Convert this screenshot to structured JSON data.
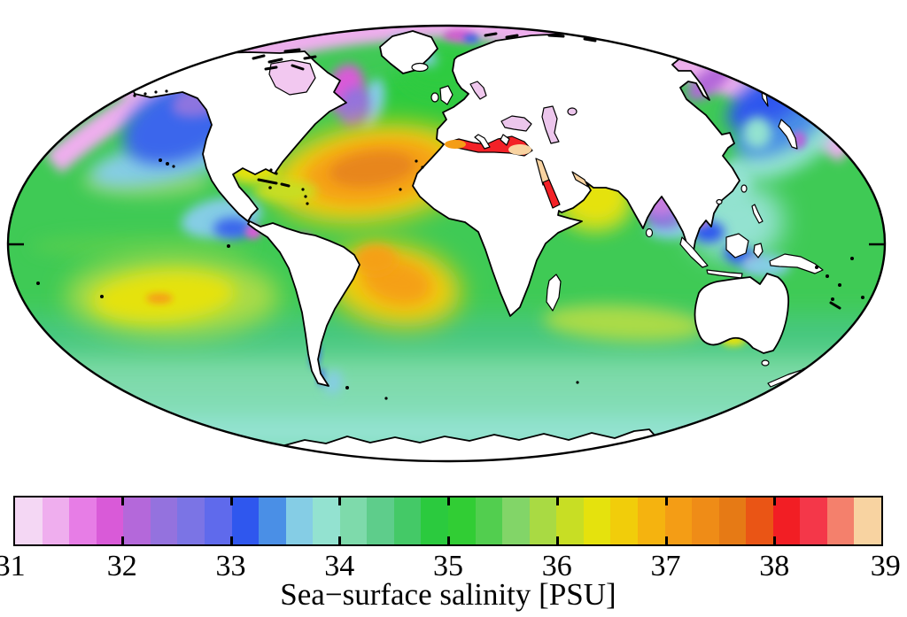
{
  "figure": {
    "type": "world-map",
    "projection": "mollweide-ellipse",
    "caption": "Sea−surface salinity [PSU]"
  },
  "colorbar": {
    "label": "Sea−surface salinity [PSU]",
    "min": 31,
    "max": 39,
    "units": "PSU",
    "tick_labels": [
      "31",
      "32",
      "33",
      "34",
      "35",
      "36",
      "37",
      "38",
      "39"
    ],
    "segments_per_unit": 4,
    "segment_colors": [
      "#f4d7f4",
      "#efaeee",
      "#e77de6",
      "#d95ad8",
      "#b468da",
      "#9472de",
      "#7b74e5",
      "#5f6aec",
      "#2f57ee",
      "#4a8fe6",
      "#85cde5",
      "#93e2d0",
      "#7edaab",
      "#5ecd8b",
      "#44c967",
      "#2bca3e",
      "#31cd34",
      "#52ce4f",
      "#82d568",
      "#a9da43",
      "#c8de24",
      "#e5e20d",
      "#f1cd0a",
      "#f5b30f",
      "#f49d15",
      "#ef8c17",
      "#e67a15",
      "#ea5515",
      "#f21e24",
      "#f43749",
      "#f4806c",
      "#f8d3a1"
    ],
    "border_color": "#000000"
  },
  "map": {
    "land_color": "#ffffff",
    "coast_color": "#000000",
    "outline_color": "#000000",
    "ocean_base": {
      "label": "Mid-latitude ocean",
      "color": "#3fca55",
      "psu": 34.8
    },
    "regions": {
      "arctic": {
        "label": "Arctic Ocean",
        "color": "#efaeee",
        "psu": 31.4
      },
      "arctic_spot_magenta": {
        "label": "Arctic low-salinity spot",
        "color": "#da5ad8",
        "psu": 31.8
      },
      "arctic_spot_blue": {
        "label": "Arctic blue patch",
        "color": "#3a66ec",
        "psu": 33.0
      },
      "hudson_bay": {
        "label": "Hudson Bay",
        "color": "#f2c8f0",
        "psu": 31.3
      },
      "baltic_sea": {
        "label": "Baltic Sea",
        "color": "#f0c8ee",
        "psu": 31.4
      },
      "black_sea": {
        "label": "Black Sea",
        "color": "#ecc6ec",
        "psu": 31.4
      },
      "caspian_sea": {
        "label": "Caspian Sea",
        "color": "#ecc6ec",
        "psu": 31.4
      },
      "aral_sea": {
        "label": "Aral Sea",
        "color": "#ecc6ec",
        "psu": 31.4
      },
      "np_subpolar_blue": {
        "label": "Subpolar North Pacific",
        "color": "#3a66ec",
        "psu": 32.9
      },
      "np_subpolar_purple": {
        "label": "Gulf of Alaska coastal",
        "color": "#8d74e0",
        "psu": 32.4
      },
      "np_subpolar_cyan": {
        "label": "North Pacific transition",
        "color": "#85cde5",
        "psu": 33.5
      },
      "np_light_green": {
        "label": "North Pacific subtropics",
        "color": "#82d568",
        "psu": 35.4
      },
      "labrador_magenta": {
        "label": "Labrador coastal",
        "color": "#da5ad8",
        "psu": 31.8
      },
      "labrador_purple": {
        "label": "Labrador Sea",
        "color": "#9472de",
        "psu": 32.3
      },
      "greenland_cyan": {
        "label": "East Greenland current",
        "color": "#85cde5",
        "psu": 33.5
      },
      "greenland_blue": {
        "label": "Greenland blue fringe",
        "color": "#3a66ec",
        "psu": 33.0
      },
      "norwegian_green": {
        "label": "NE Atlantic / Norwegian Sea",
        "color": "#2fcb3f",
        "psu": 35.0
      },
      "natl_gyre_yellow": {
        "label": "N Atlantic gyre outer",
        "color": "#f1cd0a",
        "psu": 36.5
      },
      "natl_gyre_orange": {
        "label": "N Atlantic gyre ring",
        "color": "#f5a018",
        "psu": 37.0
      },
      "natl_gyre_core": {
        "label": "N Atlantic salinity maximum",
        "color": "#e8861c",
        "psu": 37.4
      },
      "gulf_mexico_yellow": {
        "label": "Gulf of Mexico",
        "color": "#e5e20d",
        "psu": 36.2
      },
      "caribbean_yellow_green": {
        "label": "Caribbean Sea",
        "color": "#c8de24",
        "psu": 36.0
      },
      "epac_fresh_cyan": {
        "label": "E tropical Pacific fresh pool",
        "color": "#85cde5",
        "psu": 33.5
      },
      "epac_fresh_blue": {
        "label": "Panama Bight",
        "color": "#3a66ec",
        "psu": 33.0
      },
      "epac_fresh_magenta": {
        "label": "Gulf of Panama minimum",
        "color": "#da5ad8",
        "psu": 31.8
      },
      "amazon_plume": {
        "label": "Amazon/Orinoco plume",
        "color": "#da5ad8",
        "psu": 31.8
      },
      "satl_gyre_yellow": {
        "label": "S Atlantic gyre outer",
        "color": "#f1cd0a",
        "psu": 36.5
      },
      "satl_gyre_orange": {
        "label": "S Atlantic salinity maximum",
        "color": "#f5a018",
        "psu": 37.0
      },
      "spac_gyre_yellow": {
        "label": "S Pacific gyre",
        "color": "#e5e20d",
        "psu": 36.3
      },
      "spac_gyre_orange": {
        "label": "S Pacific maximum spot",
        "color": "#f5a018",
        "psu": 36.8
      },
      "spac_ring": {
        "label": "S Pacific gyre fringe",
        "color": "#abdb46",
        "psu": 35.8
      },
      "sind_band": {
        "label": "S Indian subtropical band",
        "color": "#abdb46",
        "psu": 35.8
      },
      "bight_yellow": {
        "label": "Great Australian Bight",
        "color": "#e5e20d",
        "psu": 36.1
      },
      "arabian_sea_yellow": {
        "label": "Arabian Sea",
        "color": "#e5e20d",
        "psu": 36.3
      },
      "arabian_sea_ring": {
        "label": "Arabian Sea fringe",
        "color": "#c8de24",
        "psu": 36.0
      },
      "bengal_violet": {
        "label": "Bay of Bengal core",
        "color": "#c77be0",
        "psu": 32.0
      },
      "bengal_purple": {
        "label": "Bay of Bengal",
        "color": "#8d74e0",
        "psu": 32.4
      },
      "bengal_cyan": {
        "label": "Bay of Bengal south fringe",
        "color": "#85cde5",
        "psu": 33.5
      },
      "sea_teal": {
        "label": "SE Asian seas",
        "color": "#93e2d0",
        "psu": 33.8
      },
      "sea_blue": {
        "label": "Indonesian fresh patches",
        "color": "#2f57ee",
        "psu": 33.0
      },
      "sea_violet": {
        "label": "Indonesian minima",
        "color": "#b468da",
        "psu": 32.1
      },
      "okhotsk_purple": {
        "label": "Sea of Okhotsk",
        "color": "#b468da",
        "psu": 32.1
      },
      "nwpac_blue": {
        "label": "NW Pacific subpolar",
        "color": "#2f57ee",
        "psu": 33.0
      },
      "nwpac_cornflower": {
        "label": "NW Pacific transition",
        "color": "#4a8fe6",
        "psu": 33.3
      },
      "med_red": {
        "label": "Mediterranean Sea",
        "color": "#f32127",
        "psu": 38.2
      },
      "med_west_orange": {
        "label": "W Mediterranean",
        "color": "#f49d15",
        "psu": 37.2
      },
      "med_east_peach": {
        "label": "E Mediterranean (saturated)",
        "color": "#f8d3a1",
        "psu": 39.0
      },
      "red_sea_north": {
        "label": "N Red Sea (saturated)",
        "color": "#f8d3a1",
        "psu": 39.0
      },
      "red_sea_south": {
        "label": "S Red Sea",
        "color": "#f32127",
        "psu": 38.3
      },
      "persian_gulf": {
        "label": "Persian Gulf (saturated)",
        "color": "#f8d3a1",
        "psu": 39.0
      },
      "so_band_green": {
        "label": "Southern Ocean 40-50S",
        "color": "#46c87f",
        "psu": 34.4
      },
      "so_band_teal": {
        "label": "Southern Ocean 50-60S",
        "color": "#7edaab",
        "psu": 34.1
      },
      "so_band_seafoam": {
        "label": "Antarctic coastal waters",
        "color": "#93e2d0",
        "psu": 33.9
      },
      "chile_blue": {
        "label": "Chilean fjords",
        "color": "#3a66ec",
        "psu": 33.0
      },
      "patagonia_cyan": {
        "label": "Patagonian shelf",
        "color": "#85cde5",
        "psu": 33.6
      },
      "eq_pac_light": {
        "label": "Equatorial Pacific band",
        "color": "#52ce4f",
        "psu": 35.1
      }
    }
  },
  "chart_data": {
    "type": "heatmap",
    "title": "Sea−surface salinity [PSU]",
    "units": "PSU",
    "colorbar_range": [
      31,
      39
    ],
    "colorbar_tick_labels": [
      "31",
      "32",
      "33",
      "34",
      "35",
      "36",
      "37",
      "38",
      "39"
    ],
    "legend_position": "bottom",
    "features": [
      {
        "region": "Arctic Ocean",
        "psu": 31.4
      },
      {
        "region": "Subpolar North Pacific",
        "psu": 32.9
      },
      {
        "region": "Subpolar North Atlantic / Labrador",
        "psu": 32.3
      },
      {
        "region": "North Atlantic subtropical gyre maximum",
        "psu": 37.4
      },
      {
        "region": "South Atlantic subtropical gyre maximum",
        "psu": 37.0
      },
      {
        "region": "South Pacific subtropical gyre",
        "psu": 36.3
      },
      {
        "region": "South Indian subtropical band",
        "psu": 35.8
      },
      {
        "region": "Mediterranean Sea",
        "psu": 38.2
      },
      {
        "region": "Eastern Mediterranean",
        "psu": 39.0
      },
      {
        "region": "Red Sea",
        "psu": 38.5
      },
      {
        "region": "Persian Gulf",
        "psu": 39.0
      },
      {
        "region": "Arabian Sea",
        "psu": 36.3
      },
      {
        "region": "Bay of Bengal",
        "psu": 32.2
      },
      {
        "region": "Indonesian seas",
        "psu": 33.2
      },
      {
        "region": "Eastern tropical Pacific fresh pool",
        "psu": 33.0
      },
      {
        "region": "Amazon plume",
        "psu": 31.8
      },
      {
        "region": "Hudson Bay / Baltic / Black / Caspian seas",
        "psu": 31.4
      },
      {
        "region": "Southern Ocean",
        "psu": 34.0
      },
      {
        "region": "Mid-latitude open ocean background",
        "psu": 34.8
      }
    ]
  }
}
